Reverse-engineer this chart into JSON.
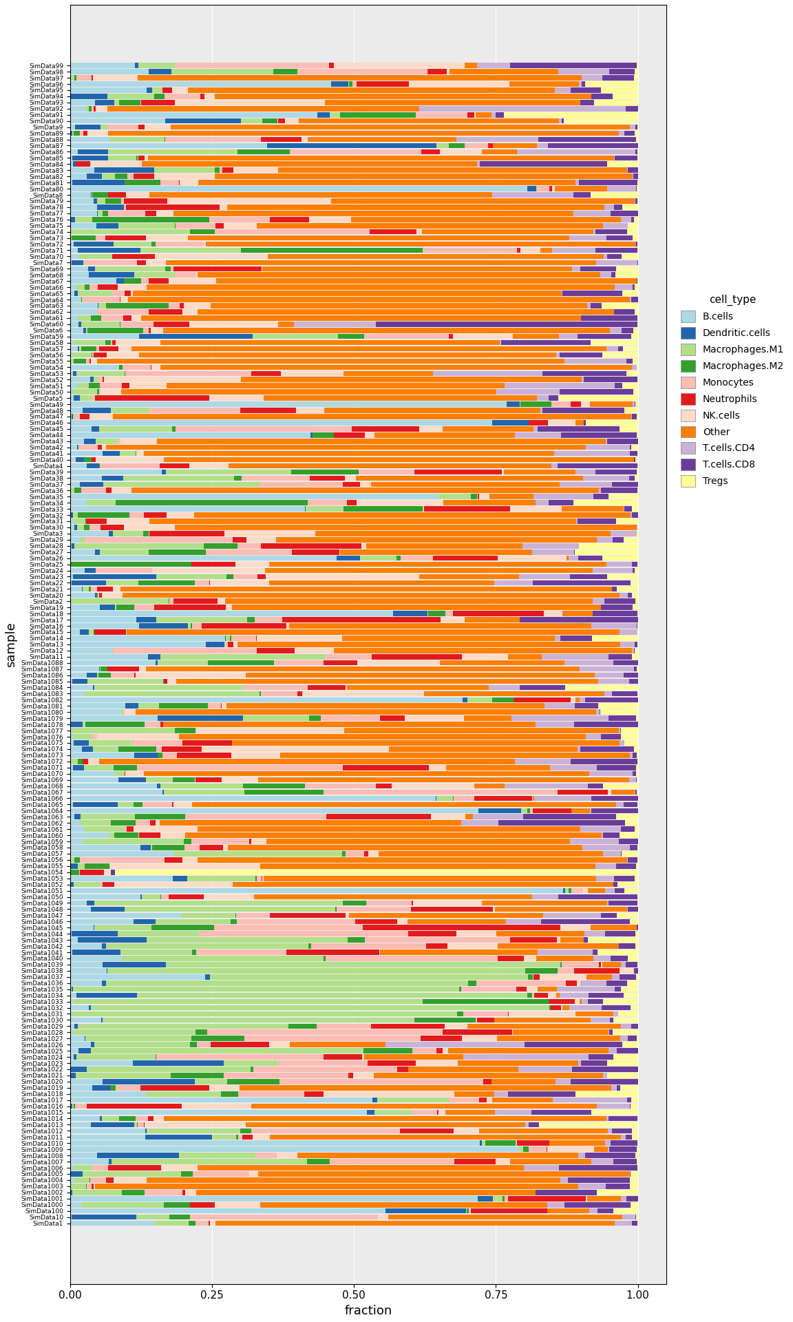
{
  "cell_types": [
    "B.cells",
    "Dendritic.cells",
    "Macrophages.M1",
    "Macrophages.M2",
    "Monocytes",
    "Neutrophils",
    "NK.cells",
    "Other",
    "T.cells.CD4",
    "T.cells.CD8",
    "Tregs"
  ],
  "colors": {
    "B.cells": "#ADD8E6",
    "Dendritic.cells": "#2166AC",
    "Macrophages.M1": "#B2DF8A",
    "Macrophages.M2": "#33A02C",
    "Monocytes": "#FDBCB4",
    "Neutrophils": "#E31A1C",
    "NK.cells": "#FDDBC7",
    "Other": "#FF7F00",
    "T.cells.CD4": "#CAB2D6",
    "T.cells.CD8": "#6A3D9A",
    "Tregs": "#FFFF99"
  },
  "xlabel": "fraction",
  "ylabel": "sample",
  "xlim": [
    0,
    1
  ],
  "legend_title": "cell_type"
}
